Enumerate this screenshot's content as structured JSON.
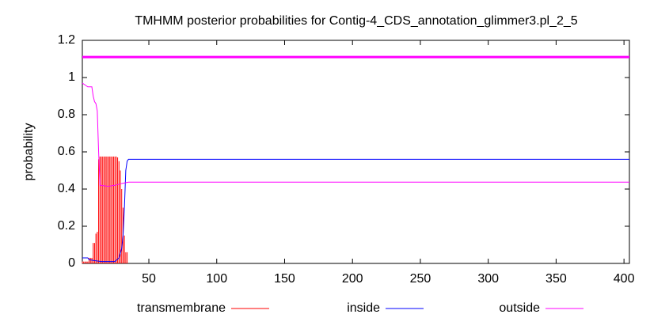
{
  "chart_data": {
    "type": "tmhmm",
    "title": "TMHMM posterior probabilities for Contig-4_CDS_annotation_glimmer3.pl_2_5",
    "ylabel": "probability",
    "xlim": [
      1,
      404
    ],
    "ylim": [
      0,
      1.2
    ],
    "xticks": [
      50,
      100,
      150,
      200,
      250,
      300,
      350,
      400
    ],
    "yticks": [
      0,
      0.2,
      0.4,
      0.6,
      0.8,
      1,
      1.2
    ],
    "topology": {
      "y": 1.11,
      "x": [
        1,
        404
      ],
      "color": "#ff00ff"
    },
    "series": [
      {
        "name": "transmembrane",
        "color": "#ff0000",
        "style": "impulses",
        "x": [
          1,
          2,
          3,
          4,
          5,
          6,
          7,
          8,
          9,
          10,
          11,
          12,
          13,
          14,
          15,
          16,
          17,
          18,
          19,
          20,
          21,
          22,
          23,
          24,
          25,
          26,
          27,
          28,
          29,
          30,
          31,
          32,
          33,
          34
        ],
        "values": [
          0.01,
          0.01,
          0.01,
          0.01,
          0.01,
          0.03,
          0.03,
          0.03,
          0.11,
          0.11,
          0.16,
          0.17,
          0.56,
          0.575,
          0.575,
          0.575,
          0.575,
          0.575,
          0.575,
          0.575,
          0.575,
          0.575,
          0.575,
          0.575,
          0.575,
          0.575,
          0.57,
          0.55,
          0.5,
          0.4,
          0.3,
          0.15,
          0.06,
          0.06
        ]
      },
      {
        "name": "inside",
        "color": "#0000ff",
        "style": "line",
        "x": [
          1,
          5,
          6,
          10,
          15,
          25,
          28,
          30,
          31,
          32,
          33,
          34,
          35,
          404
        ],
        "values": [
          0.03,
          0.03,
          0.02,
          0.015,
          0.01,
          0.01,
          0.03,
          0.08,
          0.15,
          0.3,
          0.5,
          0.55,
          0.56,
          0.56
        ]
      },
      {
        "name": "outside",
        "color": "#ff00ff",
        "style": "line",
        "x": [
          1,
          3,
          5,
          8,
          9,
          10,
          11,
          12,
          13,
          14,
          20,
          25,
          30,
          35,
          404
        ],
        "values": [
          0.97,
          0.96,
          0.95,
          0.95,
          0.9,
          0.87,
          0.86,
          0.82,
          0.6,
          0.42,
          0.415,
          0.42,
          0.43,
          0.437,
          0.437
        ]
      }
    ]
  }
}
